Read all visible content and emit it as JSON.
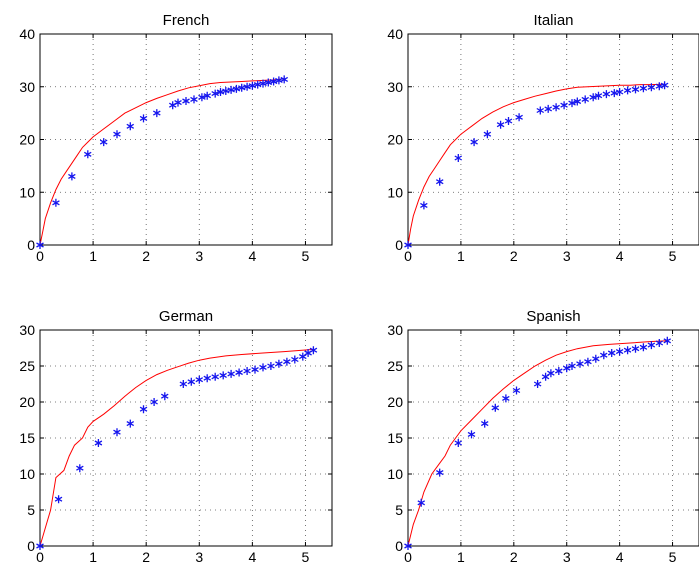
{
  "colors": {
    "line": "#ff0000",
    "marker": "#1515ee",
    "axis": "#000000",
    "grid": "#555555"
  },
  "chart_data": [
    {
      "type": "line+scatter",
      "title": "French",
      "xlabel": "",
      "ylabel": "",
      "xlim": [
        0,
        5.5
      ],
      "ylim": [
        0,
        40
      ],
      "xticks": [
        0,
        1,
        2,
        3,
        4,
        5
      ],
      "yticks": [
        0,
        10,
        20,
        30,
        40
      ],
      "grid": "dotted",
      "curve": [
        [
          0,
          0
        ],
        [
          0.05,
          2.5
        ],
        [
          0.1,
          5
        ],
        [
          0.2,
          8
        ],
        [
          0.3,
          10.5
        ],
        [
          0.4,
          12.5
        ],
        [
          0.5,
          14
        ],
        [
          0.6,
          15.5
        ],
        [
          0.7,
          17
        ],
        [
          0.8,
          18.5
        ],
        [
          0.9,
          19.5
        ],
        [
          1.0,
          20.5
        ],
        [
          1.2,
          22
        ],
        [
          1.4,
          23.5
        ],
        [
          1.6,
          25
        ],
        [
          1.8,
          26
        ],
        [
          2.0,
          27
        ],
        [
          2.2,
          27.8
        ],
        [
          2.4,
          28.5
        ],
        [
          2.6,
          29.2
        ],
        [
          2.8,
          29.8
        ],
        [
          3.0,
          30.2
        ],
        [
          3.2,
          30.6
        ],
        [
          3.4,
          30.8
        ],
        [
          3.6,
          30.9
        ],
        [
          3.8,
          31
        ],
        [
          4.0,
          31.1
        ],
        [
          4.2,
          31.2
        ],
        [
          4.4,
          31.3
        ],
        [
          4.6,
          31.5
        ]
      ],
      "points": [
        [
          0,
          0
        ],
        [
          0.3,
          8
        ],
        [
          0.6,
          13
        ],
        [
          0.9,
          17.2
        ],
        [
          1.2,
          19.5
        ],
        [
          1.45,
          21
        ],
        [
          1.7,
          22.5
        ],
        [
          1.95,
          24
        ],
        [
          2.2,
          25
        ],
        [
          2.5,
          26.5
        ],
        [
          2.6,
          27
        ],
        [
          2.75,
          27.3
        ],
        [
          2.9,
          27.6
        ],
        [
          3.05,
          28
        ],
        [
          3.15,
          28.3
        ],
        [
          3.3,
          28.7
        ],
        [
          3.4,
          29
        ],
        [
          3.5,
          29.2
        ],
        [
          3.6,
          29.4
        ],
        [
          3.7,
          29.6
        ],
        [
          3.8,
          29.8
        ],
        [
          3.9,
          30
        ],
        [
          4.0,
          30.2
        ],
        [
          4.1,
          30.4
        ],
        [
          4.2,
          30.6
        ],
        [
          4.3,
          30.8
        ],
        [
          4.4,
          31
        ],
        [
          4.5,
          31.2
        ],
        [
          4.6,
          31.4
        ]
      ]
    },
    {
      "type": "line+scatter",
      "title": "Italian",
      "xlabel": "",
      "ylabel": "",
      "xlim": [
        0,
        5.5
      ],
      "ylim": [
        0,
        40
      ],
      "xticks": [
        0,
        1,
        2,
        3,
        4,
        5
      ],
      "yticks": [
        0,
        10,
        20,
        30,
        40
      ],
      "grid": "dotted",
      "curve": [
        [
          0,
          0
        ],
        [
          0.05,
          3
        ],
        [
          0.1,
          5.5
        ],
        [
          0.2,
          8.5
        ],
        [
          0.3,
          11
        ],
        [
          0.4,
          13
        ],
        [
          0.5,
          14.5
        ],
        [
          0.6,
          16
        ],
        [
          0.7,
          17.5
        ],
        [
          0.8,
          19
        ],
        [
          0.9,
          20
        ],
        [
          1.0,
          21
        ],
        [
          1.2,
          22.5
        ],
        [
          1.4,
          24
        ],
        [
          1.6,
          25.2
        ],
        [
          1.8,
          26.2
        ],
        [
          2.0,
          27
        ],
        [
          2.2,
          27.6
        ],
        [
          2.4,
          28.2
        ],
        [
          2.6,
          28.7
        ],
        [
          2.8,
          29.2
        ],
        [
          3.0,
          29.6
        ],
        [
          3.2,
          29.9
        ],
        [
          3.4,
          30
        ],
        [
          3.6,
          30.1
        ],
        [
          3.8,
          30.2
        ],
        [
          4.0,
          30.3
        ],
        [
          4.2,
          30.3
        ],
        [
          4.4,
          30.4
        ],
        [
          4.6,
          30.4
        ],
        [
          4.85,
          30.5
        ]
      ],
      "points": [
        [
          0,
          0
        ],
        [
          0.3,
          7.5
        ],
        [
          0.6,
          12
        ],
        [
          0.95,
          16.5
        ],
        [
          1.25,
          19.5
        ],
        [
          1.5,
          21
        ],
        [
          1.75,
          22.8
        ],
        [
          1.9,
          23.5
        ],
        [
          2.1,
          24.2
        ],
        [
          2.5,
          25.5
        ],
        [
          2.65,
          25.8
        ],
        [
          2.8,
          26.1
        ],
        [
          2.95,
          26.5
        ],
        [
          3.1,
          26.9
        ],
        [
          3.2,
          27.2
        ],
        [
          3.35,
          27.6
        ],
        [
          3.5,
          28
        ],
        [
          3.6,
          28.3
        ],
        [
          3.75,
          28.6
        ],
        [
          3.9,
          28.8
        ],
        [
          4.0,
          29
        ],
        [
          4.15,
          29.3
        ],
        [
          4.3,
          29.5
        ],
        [
          4.45,
          29.7
        ],
        [
          4.6,
          29.9
        ],
        [
          4.75,
          30.1
        ],
        [
          4.85,
          30.3
        ]
      ]
    },
    {
      "type": "line+scatter",
      "title": "German",
      "xlabel": "",
      "ylabel": "",
      "xlim": [
        0,
        5.5
      ],
      "ylim": [
        0,
        30
      ],
      "xticks": [
        0,
        1,
        2,
        3,
        4,
        5
      ],
      "yticks": [
        0,
        5,
        10,
        15,
        20,
        25,
        30
      ],
      "grid": "dotted",
      "curve": [
        [
          0,
          0
        ],
        [
          0.1,
          2.5
        ],
        [
          0.2,
          5
        ],
        [
          0.3,
          9.5
        ],
        [
          0.45,
          10.5
        ],
        [
          0.55,
          12.5
        ],
        [
          0.65,
          14
        ],
        [
          0.8,
          15
        ],
        [
          0.9,
          16.5
        ],
        [
          1.0,
          17.3
        ],
        [
          1.2,
          18.3
        ],
        [
          1.4,
          19.5
        ],
        [
          1.6,
          20.8
        ],
        [
          1.8,
          22
        ],
        [
          2.0,
          23
        ],
        [
          2.2,
          23.8
        ],
        [
          2.4,
          24.4
        ],
        [
          2.6,
          24.9
        ],
        [
          2.8,
          25.4
        ],
        [
          3.0,
          25.8
        ],
        [
          3.2,
          26.1
        ],
        [
          3.5,
          26.4
        ],
        [
          3.8,
          26.6
        ],
        [
          4.2,
          26.8
        ],
        [
          4.6,
          27
        ],
        [
          5.15,
          27.3
        ]
      ],
      "points": [
        [
          0,
          0
        ],
        [
          0.35,
          6.5
        ],
        [
          0.75,
          10.8
        ],
        [
          1.1,
          14.3
        ],
        [
          1.45,
          15.8
        ],
        [
          1.7,
          17
        ],
        [
          1.95,
          19
        ],
        [
          2.15,
          20
        ],
        [
          2.35,
          20.8
        ],
        [
          2.7,
          22.5
        ],
        [
          2.85,
          22.8
        ],
        [
          3.0,
          23.1
        ],
        [
          3.15,
          23.3
        ],
        [
          3.3,
          23.5
        ],
        [
          3.45,
          23.7
        ],
        [
          3.6,
          23.9
        ],
        [
          3.75,
          24.1
        ],
        [
          3.9,
          24.3
        ],
        [
          4.05,
          24.5
        ],
        [
          4.2,
          24.8
        ],
        [
          4.35,
          25
        ],
        [
          4.5,
          25.3
        ],
        [
          4.65,
          25.6
        ],
        [
          4.8,
          25.9
        ],
        [
          4.95,
          26.3
        ],
        [
          5.05,
          26.8
        ],
        [
          5.15,
          27.2
        ]
      ]
    },
    {
      "type": "line+scatter",
      "title": "Spanish",
      "xlabel": "",
      "ylabel": "",
      "xlim": [
        0,
        5.5
      ],
      "ylim": [
        0,
        30
      ],
      "xticks": [
        0,
        1,
        2,
        3,
        4,
        5
      ],
      "yticks": [
        0,
        5,
        10,
        15,
        20,
        25,
        30
      ],
      "grid": "dotted",
      "curve": [
        [
          0,
          0
        ],
        [
          0.1,
          3
        ],
        [
          0.2,
          5
        ],
        [
          0.3,
          7.5
        ],
        [
          0.45,
          10
        ],
        [
          0.6,
          11.5
        ],
        [
          0.7,
          12.5
        ],
        [
          0.8,
          14
        ],
        [
          0.9,
          15
        ],
        [
          1.0,
          16
        ],
        [
          1.2,
          17.5
        ],
        [
          1.4,
          19
        ],
        [
          1.6,
          20.5
        ],
        [
          1.8,
          21.8
        ],
        [
          2.0,
          23
        ],
        [
          2.2,
          24
        ],
        [
          2.4,
          25
        ],
        [
          2.6,
          25.8
        ],
        [
          2.8,
          26.5
        ],
        [
          3.0,
          27
        ],
        [
          3.2,
          27.4
        ],
        [
          3.5,
          27.8
        ],
        [
          3.8,
          28
        ],
        [
          4.2,
          28.2
        ],
        [
          4.6,
          28.4
        ],
        [
          4.9,
          28.5
        ]
      ],
      "points": [
        [
          0,
          0
        ],
        [
          0.25,
          6
        ],
        [
          0.6,
          10.2
        ],
        [
          0.95,
          14.3
        ],
        [
          1.2,
          15.5
        ],
        [
          1.45,
          17
        ],
        [
          1.65,
          19.2
        ],
        [
          1.85,
          20.5
        ],
        [
          2.05,
          21.6
        ],
        [
          2.45,
          22.5
        ],
        [
          2.6,
          23.5
        ],
        [
          2.7,
          24
        ],
        [
          2.85,
          24.3
        ],
        [
          3.0,
          24.7
        ],
        [
          3.1,
          25
        ],
        [
          3.25,
          25.3
        ],
        [
          3.4,
          25.6
        ],
        [
          3.55,
          26
        ],
        [
          3.7,
          26.5
        ],
        [
          3.85,
          26.8
        ],
        [
          4.0,
          27
        ],
        [
          4.15,
          27.2
        ],
        [
          4.3,
          27.4
        ],
        [
          4.45,
          27.6
        ],
        [
          4.6,
          27.9
        ],
        [
          4.75,
          28.2
        ],
        [
          4.9,
          28.5
        ]
      ]
    }
  ]
}
